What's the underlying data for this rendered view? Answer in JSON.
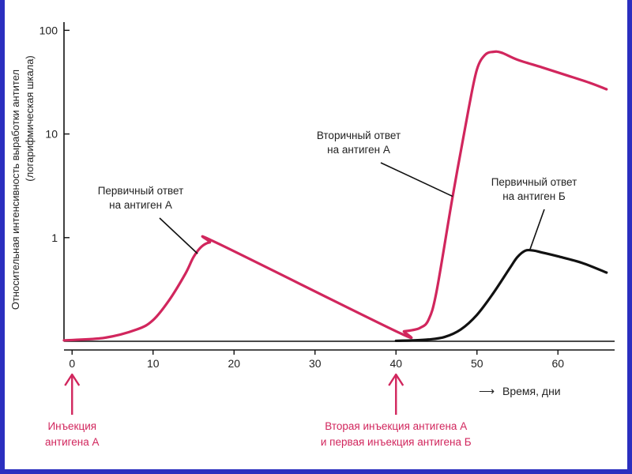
{
  "chart_data": {
    "type": "line",
    "ylabel_line1": "Относительная интенсивность выработки антител",
    "ylabel_line2": "(логарифмическая шкала)",
    "xlabel": "Время, дни",
    "xlabel_arrow": "⟶",
    "yscale": "log",
    "ylim": [
      0.1,
      120
    ],
    "xlim": [
      -1,
      67
    ],
    "xticks": [
      0,
      10,
      20,
      30,
      40,
      50,
      60
    ],
    "yticks": [
      1,
      10,
      100
    ],
    "grid": false,
    "colors": {
      "red": "#d1265d",
      "black": "#111111"
    },
    "series": [
      {
        "color": "red",
        "x": [
          -1,
          4,
          8,
          10,
          12,
          14,
          15,
          16,
          17,
          18,
          40,
          41,
          42,
          43,
          44,
          45,
          47,
          49,
          50,
          51,
          52,
          53,
          55,
          58,
          61,
          64,
          66
        ],
        "y": [
          0.102,
          0.108,
          0.13,
          0.16,
          0.25,
          0.45,
          0.65,
          0.82,
          0.9,
          0.88,
          0.125,
          0.125,
          0.128,
          0.135,
          0.16,
          0.3,
          2.5,
          18,
          42,
          58,
          62,
          61,
          52,
          44,
          37,
          31,
          27
        ]
      },
      {
        "color": "black",
        "x": [
          40,
          42,
          44,
          46,
          48,
          50,
          52,
          54,
          55,
          56,
          57,
          58,
          60,
          63,
          66
        ],
        "y": [
          0.101,
          0.102,
          0.104,
          0.11,
          0.13,
          0.18,
          0.29,
          0.5,
          0.65,
          0.75,
          0.75,
          0.72,
          0.66,
          0.57,
          0.46
        ]
      }
    ],
    "annotations": [
      {
        "line1": "Первичный ответ",
        "line2": "на антиген А",
        "target_x": 15.5,
        "target_y": 0.7
      },
      {
        "line1": "Вторичный ответ",
        "line2": "на антиген А",
        "target_x": 47,
        "target_y": 2.5
      },
      {
        "line1": "Первичный ответ",
        "line2": "на антиген Б",
        "target_x": 56.5,
        "target_y": 0.75
      }
    ],
    "injections": [
      {
        "x": 0,
        "line1": "Инъекция",
        "line2": "антигена А"
      },
      {
        "x": 40,
        "line1": "Вторая инъекция антигена А",
        "line2": "и первая инъекция антигена Б"
      }
    ]
  }
}
